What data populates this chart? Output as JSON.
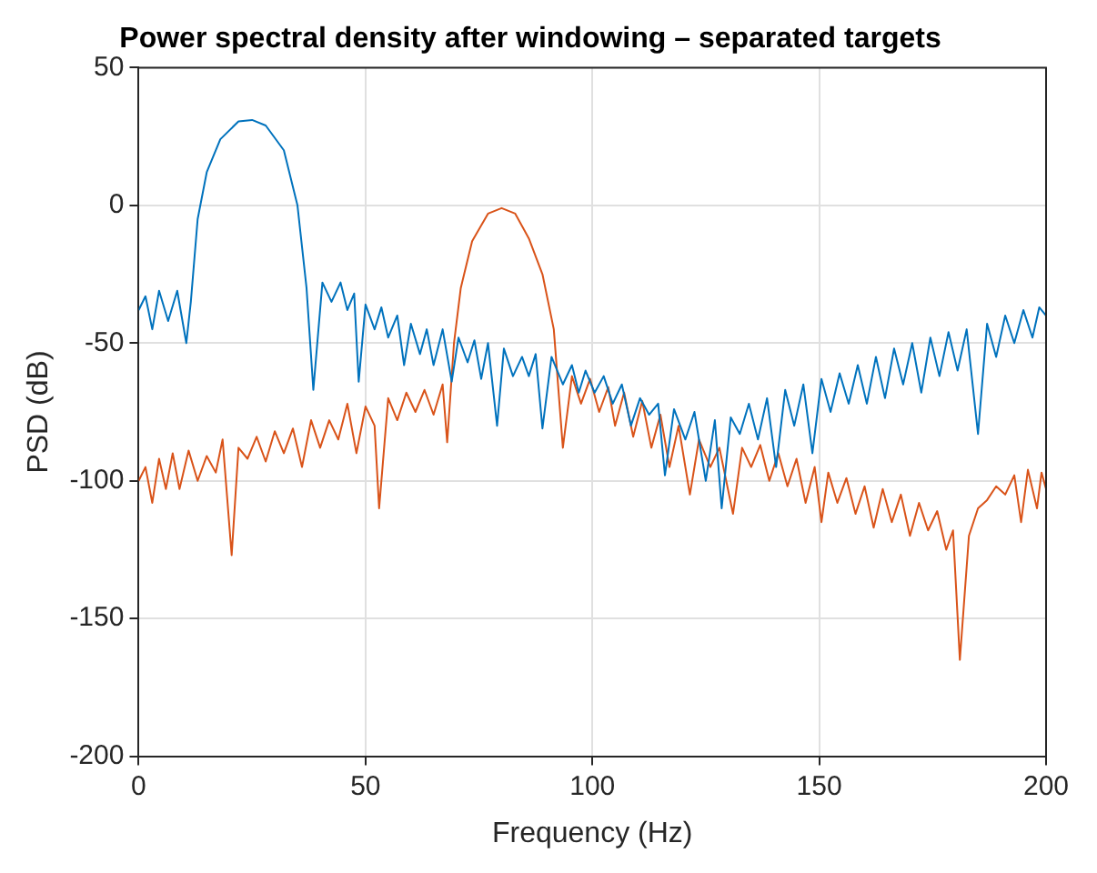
{
  "chart_data": {
    "type": "line",
    "title": "Power spectral density after windowing – separated targets",
    "xlabel": "Frequency (Hz)",
    "ylabel": "PSD (dB)",
    "xlim": [
      0,
      200
    ],
    "xticks": [
      0,
      50,
      100,
      150,
      200
    ],
    "ylim": [
      -200,
      50
    ],
    "yticks": [
      -200,
      -150,
      -100,
      -50,
      0,
      50
    ],
    "grid": true,
    "legend": false,
    "marker": "none",
    "line_style": "solid",
    "series": [
      {
        "color": "#0072bd",
        "x": [
          0,
          1.5,
          3,
          4.5,
          6.5,
          8.5,
          10.5,
          11.5,
          13,
          15,
          18,
          22,
          25,
          28,
          32,
          35,
          37,
          38.5,
          40.5,
          42.5,
          44.5,
          46,
          47.5,
          48.5,
          50,
          52,
          53.5,
          55,
          57,
          58.5,
          60,
          62,
          63.5,
          65,
          67,
          69,
          70.5,
          72.5,
          74,
          75.5,
          77,
          79,
          80.5,
          82.5,
          84.5,
          86,
          87.5,
          89,
          91,
          93.5,
          95.5,
          97,
          98.5,
          100.5,
          102.5,
          104.5,
          106.5,
          108.5,
          110.5,
          112.5,
          114.5,
          116,
          118,
          120.5,
          122.5,
          125,
          127,
          128.5,
          130.5,
          132.5,
          134.5,
          136.5,
          138.5,
          140.5,
          142.5,
          144.5,
          146.5,
          148.5,
          150.5,
          152.5,
          154.5,
          156.5,
          158.5,
          160.5,
          162.5,
          164.5,
          166.5,
          168.5,
          170.5,
          172.5,
          174.5,
          176.5,
          178.5,
          180.5,
          182.5,
          185,
          187,
          189,
          191,
          193,
          195,
          197,
          198.5,
          200
        ],
        "values": [
          -38,
          -33,
          -45,
          -31,
          -42,
          -31,
          -50,
          -35,
          -5,
          12,
          24,
          30.5,
          31,
          29,
          20,
          0,
          -30,
          -67,
          -28,
          -35,
          -28,
          -38,
          -32,
          -64,
          -36,
          -45,
          -37,
          -48,
          -40,
          -58,
          -43,
          -54,
          -45,
          -58,
          -45,
          -64,
          -48,
          -57,
          -49,
          -63,
          -50,
          -80,
          -52,
          -62,
          -55,
          -62,
          -54,
          -81,
          -55,
          -65,
          -58,
          -68,
          -60,
          -68,
          -62,
          -72,
          -65,
          -80,
          -70,
          -76,
          -72,
          -98,
          -74,
          -85,
          -75,
          -100,
          -78,
          -110,
          -77,
          -83,
          -72,
          -85,
          -70,
          -95,
          -67,
          -80,
          -65,
          -90,
          -63,
          -75,
          -61,
          -72,
          -58,
          -72,
          -55,
          -70,
          -52,
          -65,
          -50,
          -68,
          -48,
          -62,
          -46,
          -60,
          -45,
          -83,
          -43,
          -55,
          -40,
          -50,
          -38,
          -48,
          -37,
          -40
        ]
      },
      {
        "color": "#d95319",
        "x": [
          0,
          1.5,
          3,
          4.5,
          6,
          7.5,
          9,
          11,
          13,
          15,
          17,
          18.5,
          20.5,
          22,
          24,
          26,
          28,
          30,
          32,
          34,
          36,
          38,
          40,
          42,
          44,
          46,
          48,
          50,
          52,
          53,
          55,
          57,
          59,
          61,
          63,
          65,
          67,
          68,
          69.5,
          71,
          73.5,
          77,
          80,
          83,
          86,
          89,
          91.5,
          93.5,
          95.5,
          97.5,
          99.5,
          101.5,
          103.5,
          105,
          107,
          109,
          111,
          113,
          115,
          117,
          119,
          121.5,
          123.5,
          126,
          128,
          131,
          133,
          135,
          137,
          139,
          141,
          143,
          145,
          147,
          149,
          150.5,
          152,
          154,
          156,
          158,
          160,
          162,
          164,
          166,
          168,
          170,
          172,
          174,
          176,
          178,
          179.5,
          181,
          183,
          185,
          187,
          189,
          191,
          193,
          194.5,
          196,
          198,
          199,
          200
        ],
        "values": [
          -100,
          -95,
          -108,
          -92,
          -103,
          -90,
          -103,
          -89,
          -100,
          -91,
          -97,
          -85,
          -127,
          -88,
          -92,
          -84,
          -93,
          -82,
          -90,
          -81,
          -95,
          -78,
          -88,
          -78,
          -85,
          -72,
          -90,
          -73,
          -80,
          -110,
          -70,
          -78,
          -68,
          -75,
          -67,
          -76,
          -65,
          -86,
          -50,
          -30,
          -13,
          -3,
          -1,
          -3,
          -12,
          -25,
          -45,
          -88,
          -62,
          -72,
          -63,
          -75,
          -66,
          -80,
          -68,
          -84,
          -71,
          -88,
          -76,
          -95,
          -80,
          -105,
          -85,
          -95,
          -88,
          -112,
          -88,
          -95,
          -87,
          -100,
          -90,
          -102,
          -92,
          -108,
          -95,
          -115,
          -97,
          -108,
          -99,
          -112,
          -102,
          -117,
          -103,
          -115,
          -105,
          -120,
          -108,
          -118,
          -111,
          -125,
          -118,
          -165,
          -120,
          -110,
          -107,
          -102,
          -105,
          -98,
          -115,
          -96,
          -110,
          -97,
          -103
        ]
      }
    ]
  }
}
